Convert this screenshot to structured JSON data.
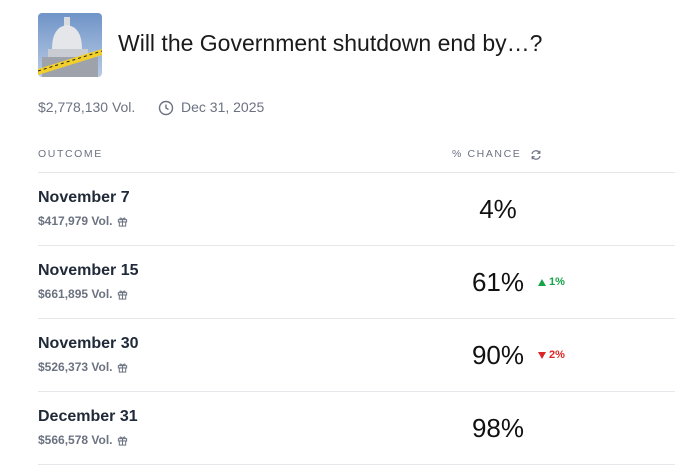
{
  "header": {
    "title": "Will the Government shutdown end by…?",
    "volume": "$2,778,130 Vol.",
    "end_date": "Dec 31, 2025"
  },
  "table": {
    "columns": [
      "OUTCOME",
      "% CHANCE"
    ],
    "rows": [
      {
        "name": "November 7",
        "volume": "$417,979 Vol.",
        "chance": "4%"
      },
      {
        "name": "November 15",
        "volume": "$661,895 Vol.",
        "chance": "61%",
        "change": "1%"
      },
      {
        "name": "November 30",
        "volume": "$526,373 Vol.",
        "chance": "90%",
        "change": "2%"
      },
      {
        "name": "December 31",
        "volume": "$566,578 Vol.",
        "chance": "98%"
      }
    ]
  }
}
